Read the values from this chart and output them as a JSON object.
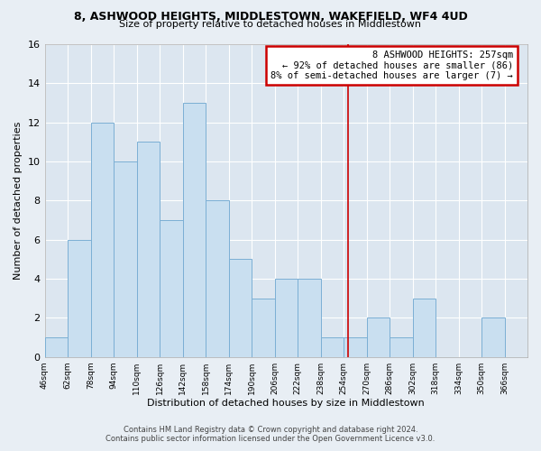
{
  "title": "8, ASHWOOD HEIGHTS, MIDDLESTOWN, WAKEFIELD, WF4 4UD",
  "subtitle": "Size of property relative to detached houses in Middlestown",
  "xlabel": "Distribution of detached houses by size in Middlestown",
  "ylabel": "Number of detached properties",
  "bin_labels": [
    "46sqm",
    "62sqm",
    "78sqm",
    "94sqm",
    "110sqm",
    "126sqm",
    "142sqm",
    "158sqm",
    "174sqm",
    "190sqm",
    "206sqm",
    "222sqm",
    "238sqm",
    "254sqm",
    "270sqm",
    "286sqm",
    "302sqm",
    "318sqm",
    "334sqm",
    "350sqm",
    "366sqm"
  ],
  "bar_values": [
    1,
    6,
    12,
    10,
    11,
    7,
    13,
    8,
    5,
    3,
    4,
    4,
    1,
    1,
    2,
    1,
    3,
    0,
    0,
    2,
    0
  ],
  "bar_color": "#c9dff0",
  "bar_edge_color": "#7bafd4",
  "property_line_x": 257,
  "bin_edges": [
    46,
    62,
    78,
    94,
    110,
    126,
    142,
    158,
    174,
    190,
    206,
    222,
    238,
    254,
    270,
    286,
    302,
    318,
    334,
    350,
    366,
    382
  ],
  "annotation_title": "8 ASHWOOD HEIGHTS: 257sqm",
  "annotation_line1": "← 92% of detached houses are smaller (86)",
  "annotation_line2": "8% of semi-detached houses are larger (7) →",
  "vline_color": "#cc0000",
  "annotation_box_color": "#ffffff",
  "annotation_box_edge": "#cc0000",
  "footer1": "Contains HM Land Registry data © Crown copyright and database right 2024.",
  "footer2": "Contains public sector information licensed under the Open Government Licence v3.0.",
  "ylim": [
    0,
    16
  ],
  "yticks": [
    0,
    2,
    4,
    6,
    8,
    10,
    12,
    14,
    16
  ],
  "bg_color": "#e8eef4",
  "grid_color": "#ffffff",
  "plot_bg_color": "#dce6f0"
}
